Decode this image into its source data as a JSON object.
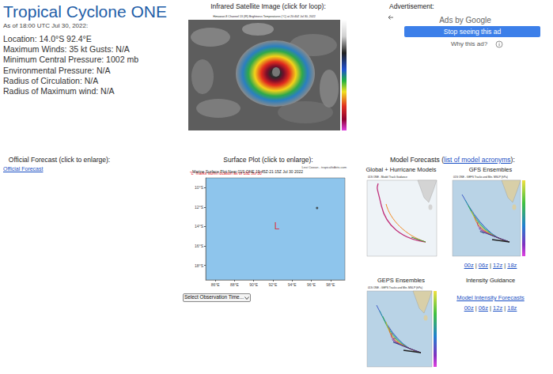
{
  "page": {
    "title": "Tropical Cyclone ONE",
    "as_of": "As of 18:00 UTC Jul 30, 2022:",
    "info": [
      "Location: 14.0°S 92.4°E",
      "Maximum Winds: 35 kt  Gusts: N/A",
      "Minimum Central Pressure: 1002 mb",
      "Environmental Pressure: N/A",
      "Radius of Circulation: N/A",
      "Radius of Maximum wind: N/A"
    ],
    "satellite": {
      "header": "Infrared Satellite Image (click for loop):",
      "caption": "Himawari-8 Channel 13 (IR) Brightness Temperatures (°C) at 20:40Z Jul 30, 2022"
    },
    "ad": {
      "header": "Advertisement:",
      "brand": "Ads by Google",
      "button": "Stop seeing this ad",
      "why": "Why this ad?"
    },
    "official": {
      "header": "Official Forecast (click to enlarge):",
      "link": "Official Forecast"
    },
    "surface": {
      "header": "Surface Plot (click to enlarge):",
      "select": "Select Observation Time..."
    },
    "models": {
      "header_start": "Model Forecasts (",
      "header_link": "list of model acronyms",
      "header_end": "):",
      "separator": "|",
      "panels": [
        {
          "title": "Global + Hurricane Models",
          "image_title": "01S ONE - Model Track Guidance"
        },
        {
          "title": "GFS Ensembles",
          "image_title": "01S ONE - GEFS Tracks and Min. MSLP (hPa)",
          "runs": [
            "00z",
            "06z",
            "12z",
            "18z"
          ]
        },
        {
          "title": "GEPS Ensembles",
          "image_title": "01S ONE - GEPS Tracks and Min. MSLP (hPa)"
        }
      ],
      "intensity": {
        "title": "Intensity Guidance",
        "link": "Model Intensity Forecasts",
        "runs": [
          "00z",
          "06z",
          "12z",
          "18z"
        ]
      }
    }
  },
  "chart_data": {
    "type": "scatter",
    "title": "Marine Surface Plot Near 01S ONE 19:45Z-21:15Z Jul 30 2022",
    "subtitle": "\"L\" marks storm location as of 18Z Jul 30",
    "credit": "Levi Cowan - tropicaltidbits.com",
    "xlim": [
      85.0,
      99.5
    ],
    "xticks": [
      {
        "value": 86,
        "label": "86°E"
      },
      {
        "value": 88,
        "label": "88°E"
      },
      {
        "value": 90,
        "label": "90°E"
      },
      {
        "value": 92,
        "label": "92°E"
      },
      {
        "value": 94,
        "label": "94°E"
      },
      {
        "value": 96,
        "label": "96°E"
      },
      {
        "value": 98,
        "label": "98°E"
      }
    ],
    "ylim": [
      -19.5,
      -9.0
    ],
    "yticks": [
      {
        "value": -18,
        "label": "18°S"
      },
      {
        "value": -16,
        "label": "16°S"
      },
      {
        "value": -14,
        "label": "14°S"
      },
      {
        "value": -12,
        "label": "12°S"
      },
      {
        "value": -10,
        "label": "10°S"
      }
    ],
    "grid": false,
    "series": [
      {
        "type": "scatter",
        "marker": "circle",
        "color": "#333333",
        "x": [
          96.6
        ],
        "values": [
          -12.1
        ]
      }
    ],
    "annotations": [
      {
        "text": "L",
        "x": 92.4,
        "y": -14.0,
        "color": "#e8141b"
      }
    ]
  }
}
